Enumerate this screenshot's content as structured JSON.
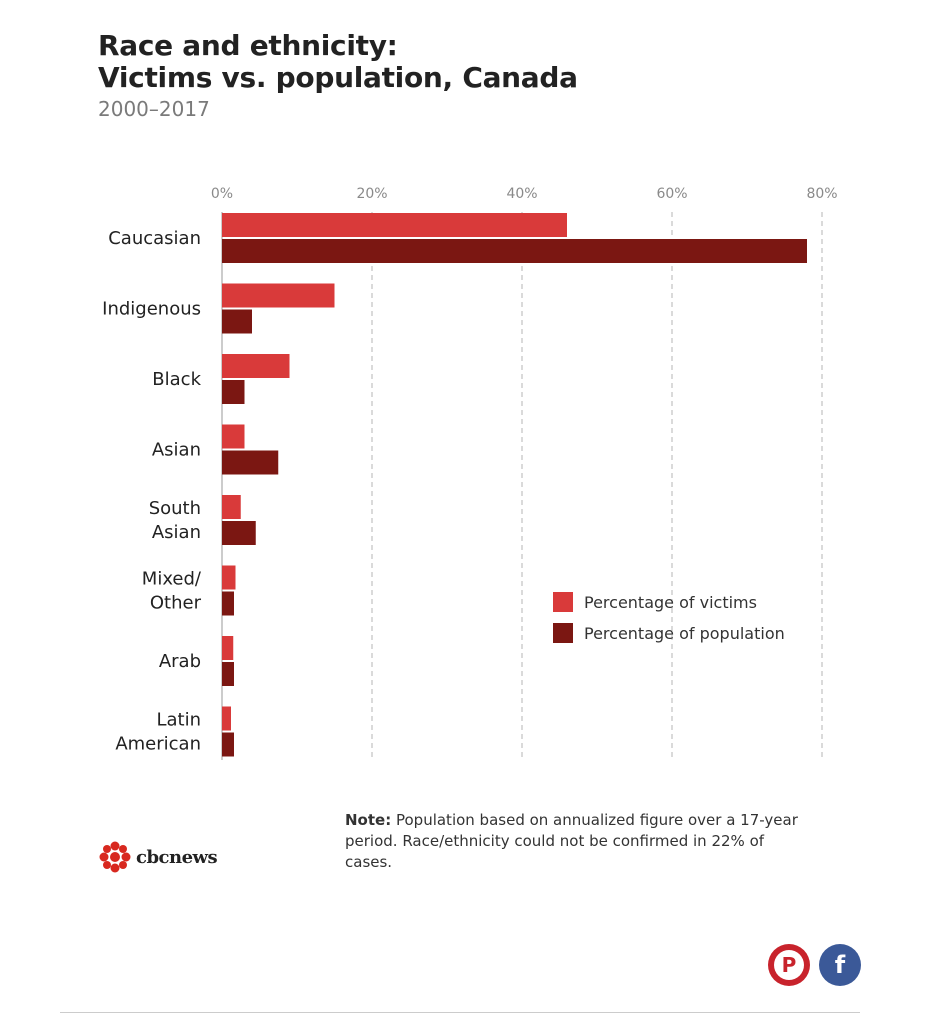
{
  "header": {
    "title_line1": "Race and ethnicity:",
    "title_line2": "Victims vs. population, Canada",
    "subtitle": "2000–2017"
  },
  "chart_data": {
    "type": "bar",
    "orientation": "horizontal",
    "title": "Race and ethnicity: Victims vs. population, Canada",
    "subtitle": "2000–2017",
    "categories": [
      [
        "Caucasian"
      ],
      [
        "Indigenous"
      ],
      [
        "Black"
      ],
      [
        "Asian"
      ],
      [
        "South",
        "Asian"
      ],
      [
        "Mixed/",
        "Other"
      ],
      [
        "Arab"
      ],
      [
        "Latin",
        "American"
      ]
    ],
    "series": [
      {
        "name": "Percentage of victims",
        "color": "#d93a3a",
        "values": [
          46,
          15,
          9,
          3,
          2.5,
          1.8,
          1.5,
          1.2
        ]
      },
      {
        "name": "Percentage of population",
        "color": "#7b1712",
        "values": [
          78,
          4,
          3,
          7.5,
          4.5,
          1.6,
          1.6,
          1.6
        ]
      }
    ],
    "xlim": [
      0,
      80
    ],
    "x_ticks": [
      0,
      20,
      40,
      60,
      80
    ],
    "x_tick_labels": [
      "0%",
      "20%",
      "40%",
      "60%",
      "80%"
    ],
    "grid": true,
    "legend_position": "lower-right"
  },
  "note": {
    "label": "Note:",
    "text": "Population based on annualized figure over a 17-year period. Race/ethnicity could not be confirmed in 22% of cases."
  },
  "brand": {
    "name": "CBCnews",
    "text": "cbcnews",
    "icon": "cbc-gem-icon"
  },
  "share": [
    {
      "name": "pinterest",
      "icon": "pinterest-icon",
      "glyph": "P",
      "color": "#c8232c"
    },
    {
      "name": "facebook",
      "icon": "facebook-icon",
      "glyph": "f",
      "color": "#3b5998"
    }
  ]
}
